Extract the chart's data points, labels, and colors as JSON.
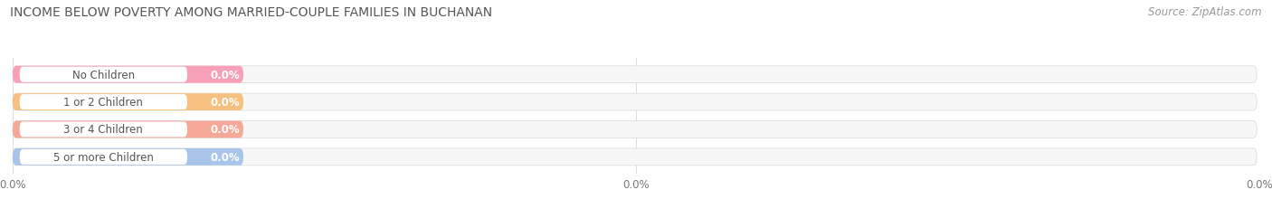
{
  "title": "INCOME BELOW POVERTY AMONG MARRIED-COUPLE FAMILIES IN BUCHANAN",
  "source": "Source: ZipAtlas.com",
  "categories": [
    "No Children",
    "1 or 2 Children",
    "3 or 4 Children",
    "5 or more Children"
  ],
  "values": [
    0.0,
    0.0,
    0.0,
    0.0
  ],
  "bar_colors": [
    "#f7a0b8",
    "#f5c080",
    "#f5a898",
    "#a8c4e8"
  ],
  "background_color": "#ffffff",
  "bar_bg_color": "#f0f0f0",
  "title_color": "#555555",
  "source_color": "#999999",
  "label_color": "#555555",
  "value_color": "#ffffff",
  "grid_color": "#dddddd",
  "title_fontsize": 10,
  "bar_label_fontsize": 8.5,
  "tick_fontsize": 8.5
}
